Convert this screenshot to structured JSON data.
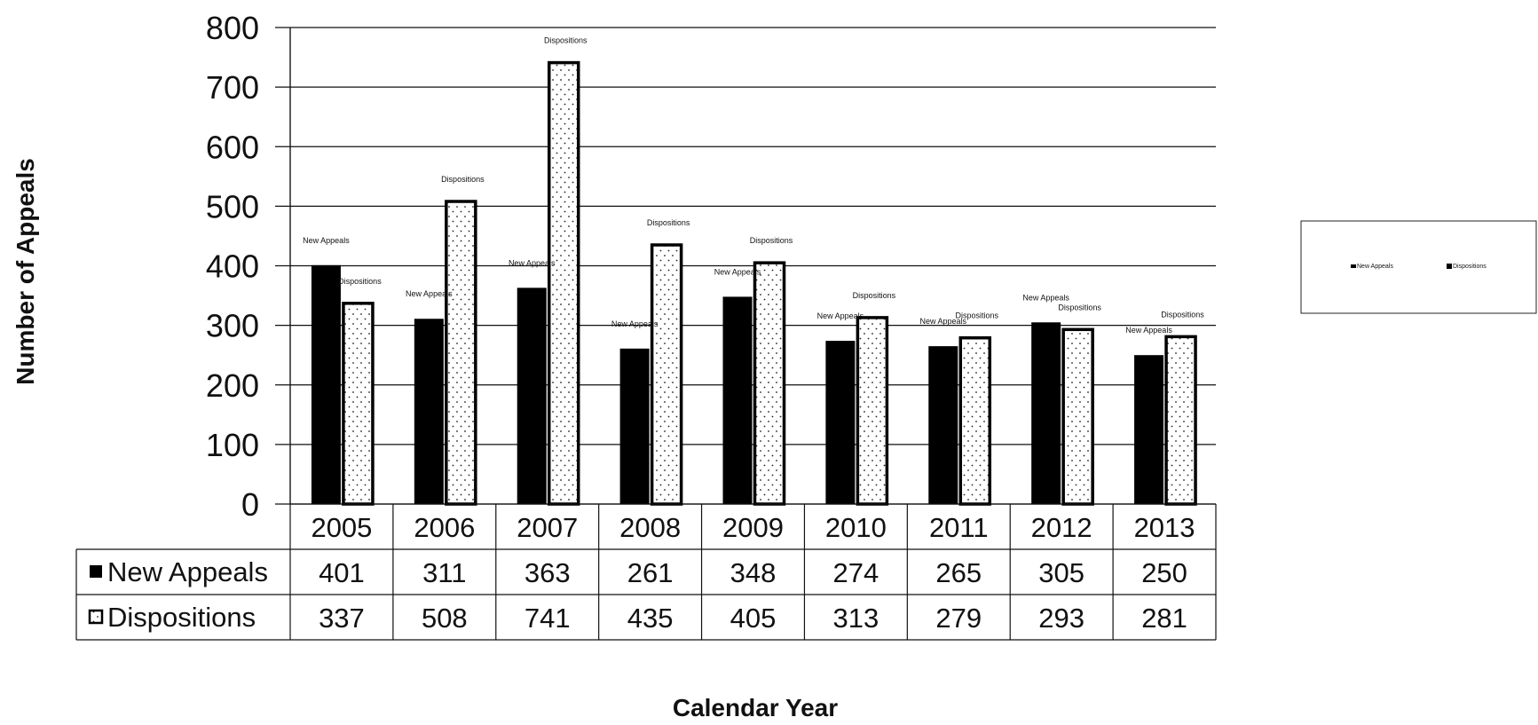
{
  "chart_data": {
    "type": "bar",
    "ylabel": "Number of Appeals",
    "xlabel": "Calendar Year",
    "ylim": [
      0,
      800
    ],
    "yticks": [
      0,
      100,
      200,
      300,
      400,
      500,
      600,
      700,
      800
    ],
    "grid": true,
    "legend_position": "right",
    "categories": [
      "2005",
      "2006",
      "2007",
      "2008",
      "2009",
      "2010",
      "2011",
      "2012",
      "2013"
    ],
    "series": [
      {
        "name": "New Appeals",
        "color": "#000000",
        "fill": "solid",
        "values": [
          401,
          311,
          363,
          261,
          348,
          274,
          265,
          305,
          250
        ]
      },
      {
        "name": "Dispositions",
        "color": "#ffffff",
        "fill": "dotted",
        "values": [
          337,
          508,
          741,
          435,
          405,
          313,
          279,
          293,
          281
        ]
      }
    ],
    "data_table": true
  }
}
